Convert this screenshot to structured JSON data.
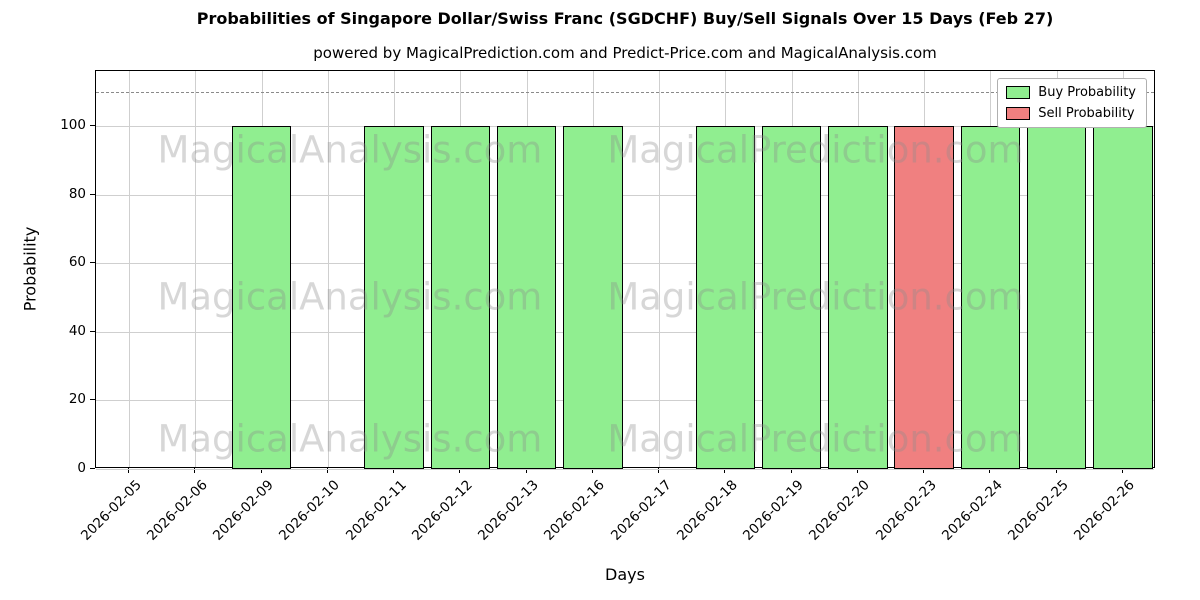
{
  "chart_data": {
    "type": "bar",
    "title": "Probabilities of Singapore Dollar/Swiss Franc (SGDCHF) Buy/Sell Signals Over 15 Days (Feb 27)",
    "subtitle": "powered by MagicalPrediction.com and Predict-Price.com and MagicalAnalysis.com",
    "xlabel": "Days",
    "ylabel": "Probability",
    "ylim": [
      0,
      116
    ],
    "yticks": [
      0,
      20,
      40,
      60,
      80,
      100
    ],
    "dashed_line_y": 110,
    "grid": true,
    "legend_position": "upper right",
    "categories": [
      "2026-02-05",
      "2026-02-06",
      "2026-02-09",
      "2026-02-10",
      "2026-02-11",
      "2026-02-12",
      "2026-02-13",
      "2026-02-16",
      "2026-02-17",
      "2026-02-18",
      "2026-02-19",
      "2026-02-20",
      "2026-02-23",
      "2026-02-24",
      "2026-02-25",
      "2026-02-26"
    ],
    "series": [
      {
        "name": "Buy Probability",
        "color": "#90EE90",
        "values": [
          0,
          0,
          100,
          0,
          100,
          100,
          100,
          100,
          0,
          100,
          100,
          100,
          0,
          100,
          100,
          100
        ]
      },
      {
        "name": "Sell Probability",
        "color": "#F08080",
        "values": [
          0,
          0,
          0,
          0,
          0,
          0,
          0,
          0,
          0,
          0,
          0,
          0,
          100,
          0,
          0,
          0
        ]
      }
    ]
  },
  "watermarks": {
    "left_text": "MagicalAnalysis.com",
    "right_text": "MagicalPrediction.com"
  }
}
